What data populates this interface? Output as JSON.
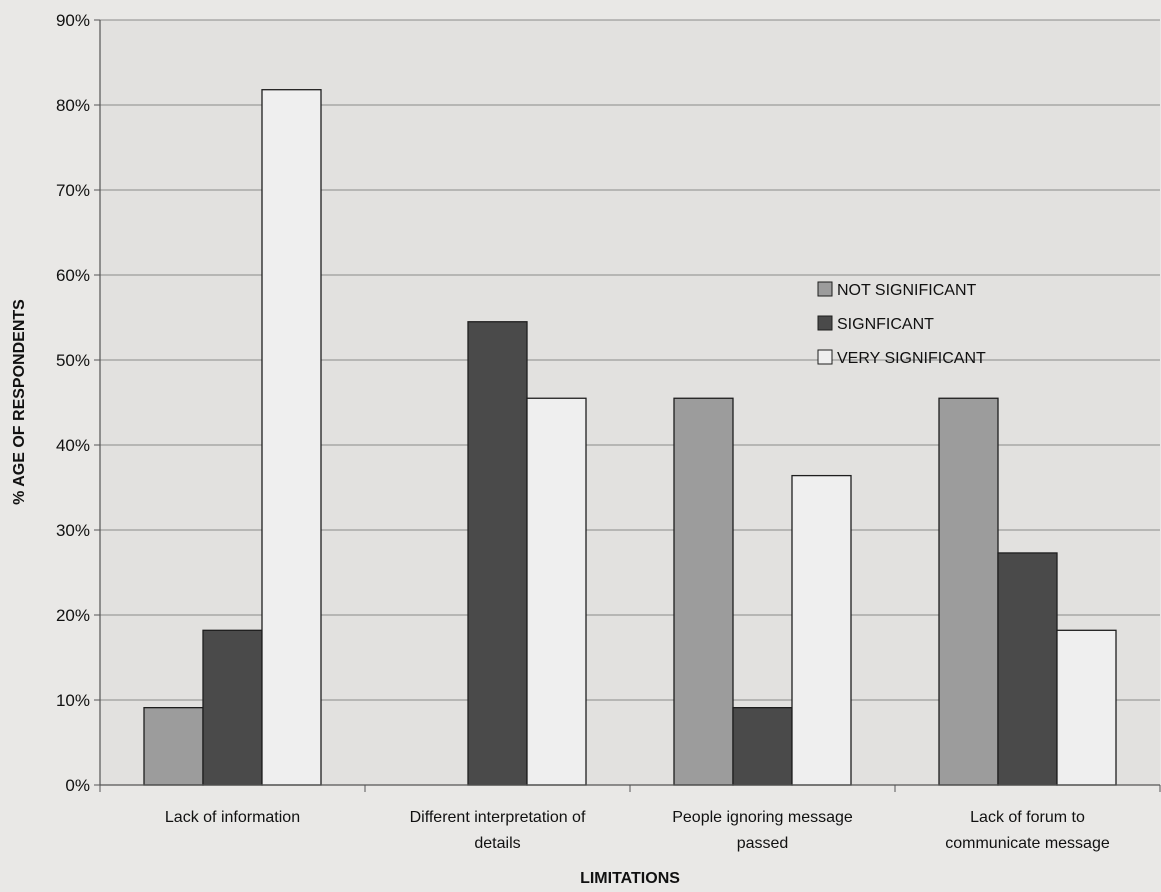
{
  "chart_data": {
    "type": "bar",
    "title": "",
    "xlabel": "LIMITATIONS",
    "ylabel": "% AGE OF RESPONDENTS",
    "ylim": [
      0,
      90
    ],
    "yticks": [
      "0%",
      "10%",
      "20%",
      "30%",
      "40%",
      "50%",
      "60%",
      "70%",
      "80%",
      "90%"
    ],
    "categories": [
      [
        "Lack of information"
      ],
      [
        "Different interpretation of",
        "details"
      ],
      [
        "People ignoring message",
        "passed"
      ],
      [
        "Lack of forum to",
        "communicate message"
      ]
    ],
    "series": [
      {
        "name": "NOT SIGNIFICANT",
        "values": [
          9.1,
          0,
          45.5,
          45.5
        ],
        "color": "#9c9c9c"
      },
      {
        "name": "SIGNFICANT",
        "values": [
          18.2,
          54.5,
          9.1,
          27.3
        ],
        "color": "#4a4a4a"
      },
      {
        "name": "VERY SIGNIFICANT",
        "values": [
          81.8,
          45.5,
          36.4,
          18.2
        ],
        "color": "#efefef"
      }
    ],
    "grid": true,
    "legend_position": "right"
  }
}
